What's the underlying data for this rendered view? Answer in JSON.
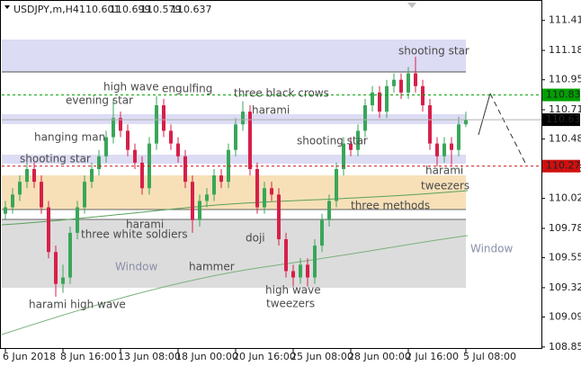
{
  "chart_data": {
    "type": "candlestick",
    "symbol": "USDJPY,m,H4",
    "categories": [
      "6 Jun 2018",
      null,
      null,
      null,
      null,
      null,
      null,
      null,
      "8 Jun 16:00",
      null,
      null,
      null,
      null,
      null,
      null,
      null,
      "13 Jun 08:00",
      null,
      null,
      null,
      null,
      null,
      null,
      null,
      "18 Jun 00:00",
      null,
      null,
      null,
      null,
      null,
      null,
      null,
      "20 Jun 16:00",
      null,
      null,
      null,
      null,
      null,
      null,
      null,
      "25 Jun 08:00",
      null,
      null,
      null,
      null,
      null,
      null,
      null,
      "28 Jun 00:00",
      null,
      null,
      null,
      null,
      null,
      null,
      null,
      "2 Jul 16:00",
      null,
      null,
      null,
      null,
      null,
      null,
      null,
      "5 Jul 08:00"
    ],
    "open": [
      109.9,
      109.95,
      110.05,
      110.15,
      110.25,
      110.15,
      109.95,
      109.6,
      109.35,
      109.4,
      109.75,
      109.95,
      110.15,
      110.25,
      110.35,
      110.5,
      110.65,
      110.55,
      110.4,
      110.3,
      110.1,
      110.45,
      110.75,
      110.55,
      110.45,
      110.35,
      110.15,
      109.85,
      110.0,
      110.05,
      110.2,
      110.15,
      110.4,
      110.6,
      110.7,
      110.25,
      109.95,
      110.1,
      110.05,
      109.7,
      109.45,
      109.4,
      109.5,
      109.4,
      109.65,
      109.85,
      110.0,
      110.25,
      110.45,
      110.4,
      110.55,
      110.75,
      110.85,
      110.7,
      110.9,
      110.95,
      110.85,
      111.0,
      110.9,
      110.75,
      110.45,
      110.35,
      110.45,
      110.4,
      110.601
    ],
    "high": [
      110.0,
      110.1,
      110.2,
      110.3,
      110.3,
      110.2,
      110.0,
      109.65,
      109.5,
      109.8,
      110.0,
      110.2,
      110.3,
      110.4,
      110.55,
      110.8,
      110.7,
      110.6,
      110.45,
      110.35,
      110.5,
      110.82,
      110.8,
      110.6,
      110.5,
      110.4,
      110.2,
      110.05,
      110.1,
      110.25,
      110.25,
      110.45,
      110.65,
      110.78,
      110.75,
      110.3,
      110.15,
      110.15,
      110.1,
      109.75,
      109.5,
      109.55,
      109.55,
      109.7,
      109.9,
      110.05,
      110.3,
      110.5,
      110.5,
      110.6,
      110.8,
      110.9,
      110.9,
      110.95,
      111.0,
      111.0,
      111.05,
      111.13,
      110.95,
      110.8,
      110.5,
      110.5,
      110.5,
      110.66,
      110.699
    ],
    "low": [
      109.85,
      109.9,
      110.0,
      110.1,
      110.1,
      109.9,
      109.55,
      109.25,
      109.28,
      109.35,
      109.7,
      109.9,
      110.1,
      110.2,
      110.3,
      110.45,
      110.5,
      110.35,
      110.25,
      110.05,
      110.05,
      110.4,
      110.5,
      110.4,
      110.3,
      110.1,
      109.75,
      109.8,
      109.95,
      110.0,
      110.1,
      110.1,
      110.35,
      110.55,
      110.2,
      109.9,
      109.9,
      110.0,
      109.65,
      109.4,
      109.33,
      109.35,
      109.33,
      109.35,
      109.6,
      109.8,
      109.95,
      110.2,
      110.35,
      110.35,
      110.5,
      110.7,
      110.65,
      110.65,
      110.85,
      110.8,
      110.8,
      110.85,
      110.7,
      110.4,
      110.27,
      110.3,
      110.28,
      110.35,
      110.579
    ],
    "close": [
      109.95,
      110.05,
      110.15,
      110.25,
      110.15,
      109.95,
      109.6,
      109.35,
      109.4,
      109.75,
      109.95,
      110.15,
      110.25,
      110.35,
      110.5,
      110.65,
      110.55,
      110.4,
      110.3,
      110.1,
      110.45,
      110.75,
      110.55,
      110.45,
      110.35,
      110.15,
      109.85,
      110.0,
      110.05,
      110.2,
      110.15,
      110.4,
      110.6,
      110.7,
      110.25,
      109.95,
      110.1,
      110.05,
      109.7,
      109.45,
      109.4,
      109.5,
      109.4,
      109.65,
      109.85,
      110.0,
      110.25,
      110.45,
      110.4,
      110.55,
      110.75,
      110.85,
      110.7,
      110.9,
      110.95,
      110.85,
      111.0,
      110.9,
      110.75,
      110.45,
      110.35,
      110.45,
      110.4,
      110.6,
      110.637
    ],
    "up_color": "#3aa65a",
    "down_color": "#d6204a",
    "ylim": [
      108.84,
      111.54
    ],
    "yticks": [
      111.415,
      111.18,
      {
        "value": 110.95,
        "label": "110.950"
      },
      110.715,
      110.485,
      {
        "value": 110.25,
        "label": "110.250"
      },
      {
        "value": 110.02,
        "label": "110.020"
      },
      109.785,
      109.555,
      {
        "value": 109.32,
        "label": "109.320"
      },
      {
        "value": 109.09,
        "label": "109.090"
      },
      108.855
    ],
    "markers": [
      {
        "value": 110.831,
        "color": "#00a000",
        "dashed": true
      },
      {
        "value": 110.637,
        "color": "#000000",
        "dashed": false
      },
      {
        "value": 110.273,
        "color": "#d01010",
        "dashed": true
      }
    ],
    "annotations": [
      "shooting star",
      "high wave",
      "engulfing",
      "three black crows",
      "evening star",
      "harami",
      "hanging man",
      "shooting star",
      "shooting star",
      "harami",
      "tweezers",
      "three methods",
      "harami",
      "three white soldiers",
      "doji",
      "Window",
      "Window",
      "hammer",
      "high wave",
      "tweezers",
      "harami high wave"
    ]
  }
}
